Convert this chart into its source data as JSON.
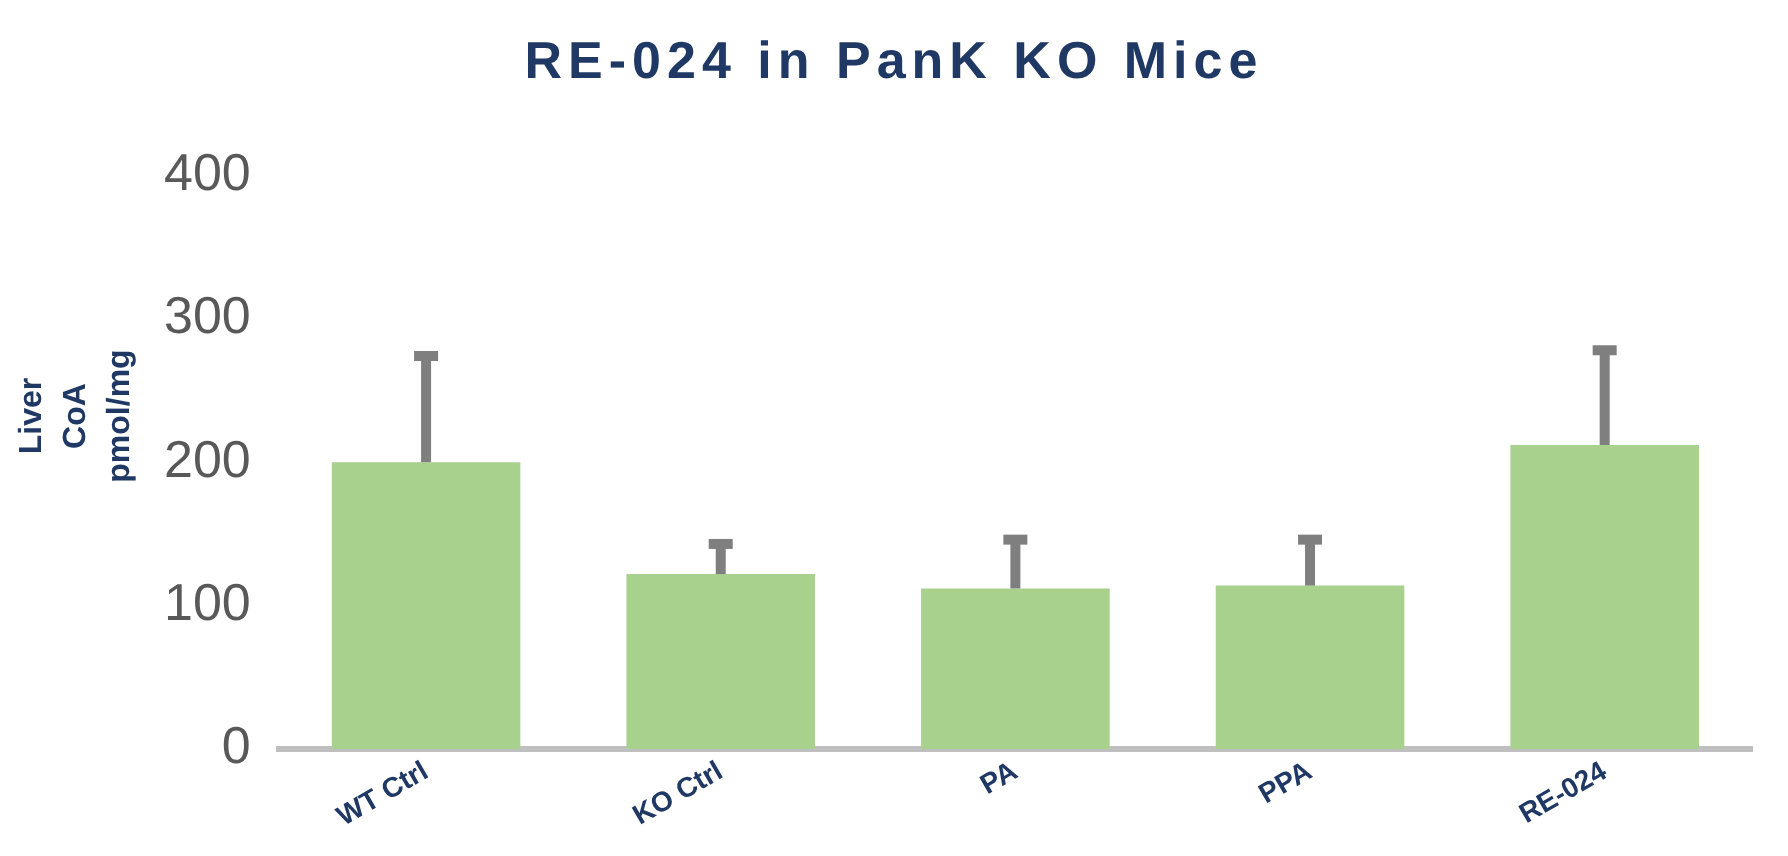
{
  "chart_data": {
    "type": "bar",
    "title": "RE-024 in PanK KO Mice",
    "ylabel": "Liver CoA pmol/mg",
    "categories": [
      "WT Ctrl",
      "KO Ctrl",
      "PA",
      "PPA",
      "RE-024"
    ],
    "values": [
      200,
      122,
      112,
      114,
      212
    ],
    "errors": [
      [
        200,
        274
      ],
      [
        122,
        143
      ],
      [
        112,
        146
      ],
      [
        114,
        146
      ],
      [
        212,
        278
      ]
    ],
    "color": "#a9d18e",
    "ylim": [
      0,
      400
    ],
    "yticks": [
      0,
      100,
      200,
      300,
      400
    ],
    "grid": false
  }
}
